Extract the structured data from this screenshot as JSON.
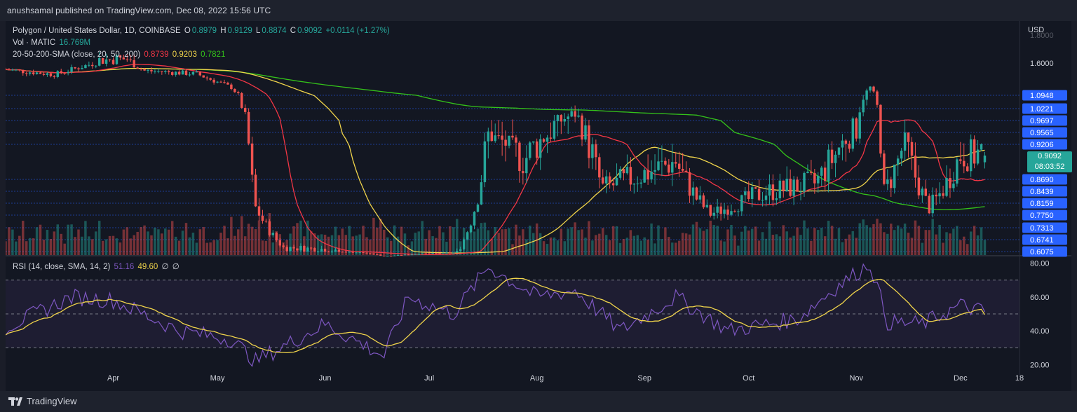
{
  "header": {
    "publisher": "anushsamal published on TradingView.com, Dec 08, 2022 15:56 UTC"
  },
  "legend": {
    "symbol": "Polygon / United States Dollar, 1D, COINBASE",
    "o_label": "O",
    "o_value": "0.8979",
    "h_label": "H",
    "h_value": "0.9129",
    "l_label": "L",
    "l_value": "0.8874",
    "c_label": "C",
    "c_value": "0.9092",
    "change": "+0.0114 (+1.27%)",
    "vol_label": "Vol · MATIC",
    "vol_value": "16.769M",
    "sma_label": "20-50-200-SMA (close, 20, 50, 200)",
    "sma20_value": "0.8739",
    "sma50_value": "0.9203",
    "sma200_value": "0.7821",
    "rsi_label": "RSI (14, close, SMA, 14, 2)",
    "rsi_value": "51.16",
    "rsi_ma_value": "49.60",
    "rsi_extra1": "∅",
    "rsi_extra2": "∅"
  },
  "price_axis": {
    "currency": "USD",
    "labels": [
      "1.6000",
      "1.0948",
      "1.0221",
      "0.9697",
      "0.9565",
      "0.9206",
      "0.9092",
      "0.8690",
      "0.8439",
      "0.8159",
      "0.7750",
      "0.7313",
      "0.6741",
      "0.6075"
    ],
    "top_partial": "1.8000",
    "current_price": "0.9092",
    "countdown": "08:03:52"
  },
  "rsi_axis": {
    "labels": [
      "80.00",
      "60.00",
      "40.00",
      "20.00"
    ]
  },
  "time_axis": {
    "labels": [
      "Apr",
      "May",
      "Jun",
      "Jul",
      "Aug",
      "Sep",
      "Oct",
      "Nov",
      "Dec",
      "18"
    ]
  },
  "footer": {
    "brand": "TradingView"
  },
  "colors": {
    "up": "#26a69a",
    "down": "#ef5350",
    "sma20": "#f23645",
    "sma50": "#f0d44b",
    "sma200": "#34c21a",
    "rsi": "#7e57c2",
    "rsi_ma": "#f0d44b",
    "price_tag": "#2962ff",
    "current_tag": "#26a69a"
  },
  "chart_data": {
    "type": "candlestick",
    "title": "Polygon / United States Dollar, 1D, COINBASE",
    "x_range": [
      "2022-03-01",
      "2022-12-08"
    ],
    "y_unit": "USD",
    "last": {
      "open": 0.8979,
      "high": 0.9129,
      "low": 0.8874,
      "close": 0.9092,
      "change": 0.0114,
      "change_pct": 1.27
    },
    "close_path": [
      {
        "date": "2022-03-01",
        "close": 1.5
      },
      {
        "date": "2022-03-15",
        "close": 1.42
      },
      {
        "date": "2022-03-28",
        "close": 1.62
      },
      {
        "date": "2022-04-05",
        "close": 1.63
      },
      {
        "date": "2022-04-10",
        "close": 1.48
      },
      {
        "date": "2022-04-25",
        "close": 1.43
      },
      {
        "date": "2022-05-05",
        "close": 1.22
      },
      {
        "date": "2022-05-12",
        "close": 0.8
      },
      {
        "date": "2022-05-20",
        "close": 0.63
      },
      {
        "date": "2022-06-01",
        "close": 0.62
      },
      {
        "date": "2022-06-12",
        "close": 0.56
      },
      {
        "date": "2022-06-18",
        "close": 0.42
      },
      {
        "date": "2022-06-28",
        "close": 0.51
      },
      {
        "date": "2022-07-08",
        "close": 0.56
      },
      {
        "date": "2022-07-18",
        "close": 0.95
      },
      {
        "date": "2022-07-28",
        "close": 0.9
      },
      {
        "date": "2022-08-12",
        "close": 1.0
      },
      {
        "date": "2022-08-20",
        "close": 0.85
      },
      {
        "date": "2022-09-10",
        "close": 0.9
      },
      {
        "date": "2022-09-20",
        "close": 0.78
      },
      {
        "date": "2022-10-05",
        "close": 0.84
      },
      {
        "date": "2022-10-20",
        "close": 0.86
      },
      {
        "date": "2022-11-01",
        "close": 0.96
      },
      {
        "date": "2022-11-05",
        "close": 1.22
      },
      {
        "date": "2022-11-09",
        "close": 0.84
      },
      {
        "date": "2022-11-15",
        "close": 0.93
      },
      {
        "date": "2022-11-22",
        "close": 0.8
      },
      {
        "date": "2022-12-01",
        "close": 0.91
      },
      {
        "date": "2022-12-08",
        "close": 0.9092
      }
    ],
    "sma_last": {
      "sma20": 0.8739,
      "sma50": 0.9203,
      "sma200": 0.7821
    },
    "volume_last": "16.769M",
    "rsi": {
      "period": 14,
      "last": 51.16,
      "ma_last": 49.6,
      "ylim": [
        20,
        80
      ],
      "levels": [
        70,
        50,
        30
      ],
      "series": [
        {
          "date": "2022-03-01",
          "value": 42
        },
        {
          "date": "2022-03-20",
          "value": 60
        },
        {
          "date": "2022-04-01",
          "value": 58
        },
        {
          "date": "2022-04-20",
          "value": 40
        },
        {
          "date": "2022-05-05",
          "value": 35
        },
        {
          "date": "2022-05-12",
          "value": 22
        },
        {
          "date": "2022-06-01",
          "value": 44
        },
        {
          "date": "2022-06-18",
          "value": 25
        },
        {
          "date": "2022-06-25",
          "value": 60
        },
        {
          "date": "2022-07-08",
          "value": 50
        },
        {
          "date": "2022-07-18",
          "value": 78
        },
        {
          "date": "2022-08-01",
          "value": 60
        },
        {
          "date": "2022-08-12",
          "value": 64
        },
        {
          "date": "2022-08-25",
          "value": 40
        },
        {
          "date": "2022-09-10",
          "value": 60
        },
        {
          "date": "2022-09-25",
          "value": 40
        },
        {
          "date": "2022-10-15",
          "value": 47
        },
        {
          "date": "2022-10-25",
          "value": 64
        },
        {
          "date": "2022-11-05",
          "value": 80
        },
        {
          "date": "2022-11-10",
          "value": 45
        },
        {
          "date": "2022-11-20",
          "value": 44
        },
        {
          "date": "2022-12-01",
          "value": 55
        },
        {
          "date": "2022-12-08",
          "value": 51.16
        }
      ]
    }
  }
}
